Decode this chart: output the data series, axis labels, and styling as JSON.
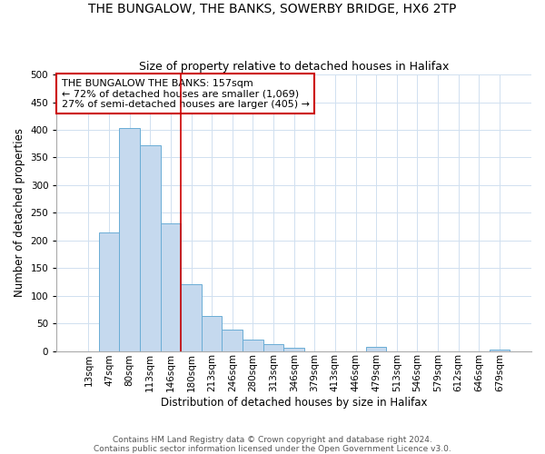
{
  "title": "THE BUNGALOW, THE BANKS, SOWERBY BRIDGE, HX6 2TP",
  "subtitle": "Size of property relative to detached houses in Halifax",
  "xlabel": "Distribution of detached houses by size in Halifax",
  "ylabel": "Number of detached properties",
  "bar_labels": [
    "13sqm",
    "47sqm",
    "80sqm",
    "113sqm",
    "146sqm",
    "180sqm",
    "213sqm",
    "246sqm",
    "280sqm",
    "313sqm",
    "346sqm",
    "379sqm",
    "413sqm",
    "446sqm",
    "479sqm",
    "513sqm",
    "546sqm",
    "579sqm",
    "612sqm",
    "646sqm",
    "679sqm"
  ],
  "bar_values": [
    0,
    215,
    403,
    372,
    230,
    120,
    63,
    39,
    20,
    13,
    5,
    0,
    0,
    0,
    7,
    0,
    0,
    0,
    0,
    0,
    2
  ],
  "bar_color": "#c5d9ee",
  "bar_edge_color": "#6aadd5",
  "vline_x_index": 4.5,
  "vline_color": "#cc0000",
  "ylim": [
    0,
    500
  ],
  "yticks": [
    0,
    50,
    100,
    150,
    200,
    250,
    300,
    350,
    400,
    450,
    500
  ],
  "annotation_title": "THE BUNGALOW THE BANKS: 157sqm",
  "annotation_line1": "← 72% of detached houses are smaller (1,069)",
  "annotation_line2": "27% of semi-detached houses are larger (405) →",
  "annotation_box_color": "#cc0000",
  "footer_line1": "Contains HM Land Registry data © Crown copyright and database right 2024.",
  "footer_line2": "Contains public sector information licensed under the Open Government Licence v3.0.",
  "title_fontsize": 10,
  "subtitle_fontsize": 9,
  "axis_label_fontsize": 8.5,
  "tick_fontsize": 7.5,
  "annotation_fontsize": 8,
  "footer_fontsize": 6.5,
  "grid_color": "#d0e0f0"
}
